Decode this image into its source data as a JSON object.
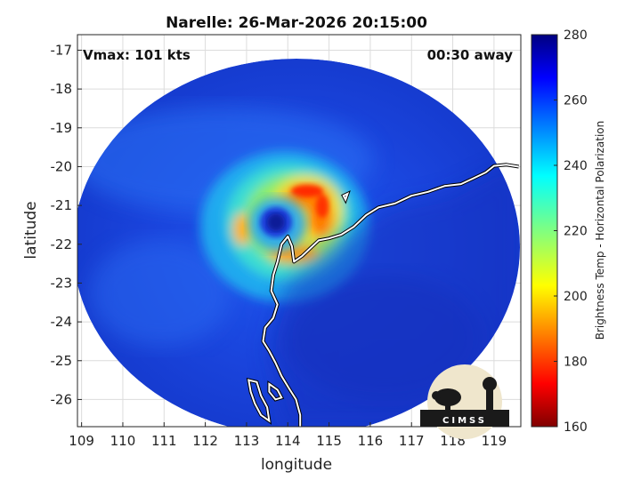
{
  "title": "Narelle: 26-Mar-2026 20:15:00",
  "overlay": {
    "vmax": "Vmax: 101 kts",
    "time_away": "00:30 away"
  },
  "axes": {
    "xlabel": "longitude",
    "ylabel": "latitude",
    "xlim": [
      108.9,
      119.65
    ],
    "ylim": [
      -26.7,
      -16.6
    ],
    "xticks": [
      "109",
      "110",
      "111",
      "112",
      "113",
      "114",
      "115",
      "116",
      "117",
      "118",
      "119"
    ],
    "yticks": [
      "-17",
      "-18",
      "-19",
      "-20",
      "-21",
      "-22",
      "-23",
      "-24",
      "-25",
      "-26"
    ],
    "grid": true
  },
  "colorbar": {
    "label": "Brightness Temp - Horizontal Polarization",
    "range": [
      160,
      280
    ],
    "ticks": [
      "280",
      "260",
      "240",
      "220",
      "200",
      "180",
      "160"
    ],
    "colormap": "jet"
  },
  "logo": {
    "text": "CIMSS"
  },
  "colors": {
    "ocean_background": "#1f3fd8",
    "coastline": "#ffffff",
    "warm_center": "#ff2a00"
  },
  "chart_data": {
    "type": "heatmap",
    "title": "Narelle: 26-Mar-2026 20:15:00",
    "xlabel": "longitude",
    "ylabel": "latitude",
    "xlim": [
      108.9,
      119.65
    ],
    "ylim": [
      -26.7,
      -16.6
    ],
    "value_range": [
      160,
      280
    ],
    "storm_center": {
      "lon": 113.9,
      "lat": -21.5
    },
    "coastline": [
      [
        119.6,
        -20.0
      ],
      [
        119.3,
        -19.95
      ],
      [
        119.0,
        -19.98
      ],
      [
        118.8,
        -20.15
      ],
      [
        118.5,
        -20.3
      ],
      [
        118.2,
        -20.45
      ],
      [
        117.8,
        -20.5
      ],
      [
        117.4,
        -20.65
      ],
      [
        117.0,
        -20.75
      ],
      [
        116.6,
        -20.95
      ],
      [
        116.2,
        -21.05
      ],
      [
        115.9,
        -21.25
      ],
      [
        115.6,
        -21.55
      ],
      [
        115.3,
        -21.75
      ],
      [
        115.0,
        -21.85
      ],
      [
        114.75,
        -21.9
      ],
      [
        114.55,
        -22.1
      ],
      [
        114.35,
        -22.3
      ],
      [
        114.15,
        -22.45
      ],
      [
        114.1,
        -22.05
      ],
      [
        114.0,
        -21.8
      ],
      [
        113.85,
        -22.0
      ],
      [
        113.75,
        -22.45
      ],
      [
        113.65,
        -22.8
      ],
      [
        113.6,
        -23.2
      ],
      [
        113.75,
        -23.55
      ],
      [
        113.65,
        -23.9
      ],
      [
        113.45,
        -24.15
      ],
      [
        113.4,
        -24.5
      ],
      [
        113.55,
        -24.75
      ],
      [
        113.7,
        -25.05
      ],
      [
        113.85,
        -25.4
      ],
      [
        114.05,
        -25.75
      ],
      [
        114.2,
        -26.0
      ],
      [
        114.3,
        -26.4
      ],
      [
        114.3,
        -26.7
      ]
    ],
    "islands": [
      [
        [
          115.35,
          -20.75
        ],
        [
          115.45,
          -20.7
        ],
        [
          115.4,
          -20.85
        ],
        [
          115.35,
          -20.75
        ]
      ],
      [
        [
          113.05,
          -25.5
        ],
        [
          113.25,
          -25.55
        ],
        [
          113.35,
          -25.9
        ],
        [
          113.5,
          -26.2
        ],
        [
          113.55,
          -26.55
        ],
        [
          113.35,
          -26.4
        ],
        [
          113.2,
          -26.1
        ],
        [
          113.1,
          -25.8
        ],
        [
          113.05,
          -25.5
        ]
      ],
      [
        [
          113.55,
          -25.6
        ],
        [
          113.75,
          -25.75
        ],
        [
          113.85,
          -25.95
        ],
        [
          113.7,
          -26.0
        ],
        [
          113.55,
          -25.8
        ],
        [
          113.55,
          -25.6
        ]
      ]
    ]
  }
}
